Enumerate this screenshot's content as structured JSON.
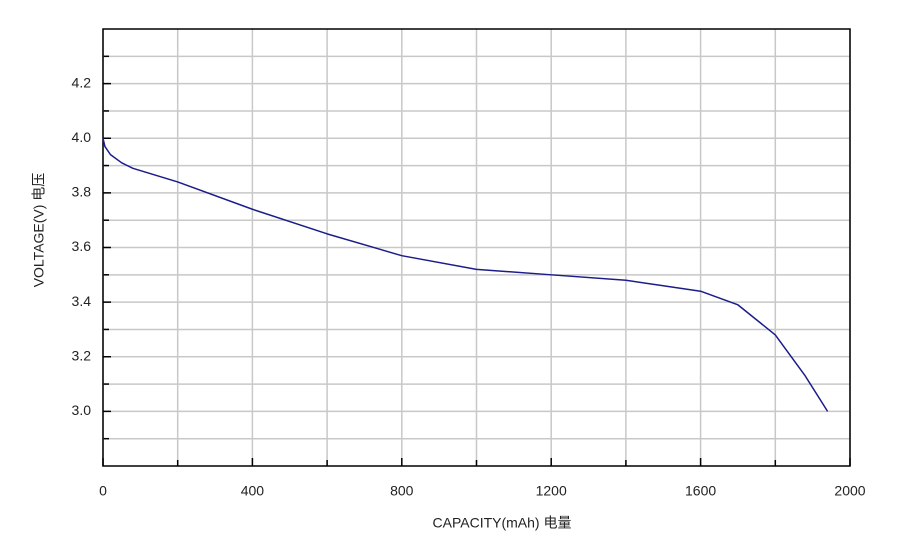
{
  "chart_data": {
    "type": "line",
    "x_label": "CAPACITY(mAh)  电量",
    "y_label": "VOLTAGE(V)  电压",
    "xlim": [
      0,
      2000
    ],
    "ylim": [
      2.8,
      4.4
    ],
    "xticks": [
      0,
      400,
      800,
      1200,
      1600,
      2000
    ],
    "x_minor_ticks": [
      200,
      600,
      1000,
      1400,
      1800
    ],
    "yticks": [
      {
        "value": 3,
        "label": "3.0"
      },
      {
        "value": 3.2,
        "label": "3.2"
      },
      {
        "value": 3.4,
        "label": "3.4"
      },
      {
        "value": 3.6,
        "label": "3.6"
      },
      {
        "value": 3.8,
        "label": "3.8"
      },
      {
        "value": 4,
        "label": "4.0"
      },
      {
        "value": 4.2,
        "label": "4.2"
      }
    ],
    "y_minor_ticks": [
      2.9,
      3.1,
      3.3,
      3.5,
      3.7,
      3.9,
      4.1,
      4.3
    ],
    "grid": true,
    "series": [
      {
        "color": "#1c1c8a",
        "x": [
          0,
          5,
          20,
          50,
          80,
          200,
          400,
          600,
          800,
          1000,
          1200,
          1400,
          1500,
          1600,
          1700,
          1800,
          1880,
          1940
        ],
        "values": [
          4.0,
          3.97,
          3.94,
          3.91,
          3.89,
          3.84,
          3.74,
          3.65,
          3.57,
          3.52,
          3.5,
          3.48,
          3.46,
          3.44,
          3.39,
          3.28,
          3.13,
          3.0
        ]
      }
    ]
  }
}
